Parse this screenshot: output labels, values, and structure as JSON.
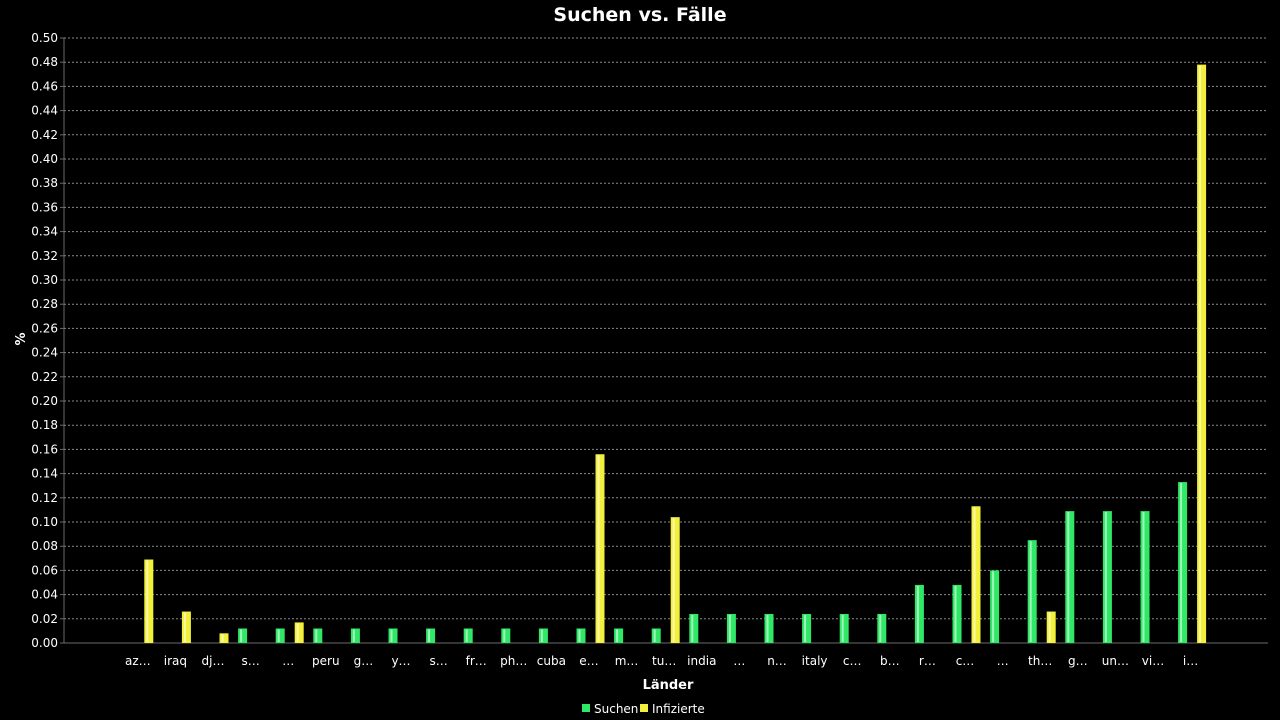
{
  "chart_data": {
    "type": "bar",
    "title": "Suchen vs. Fälle",
    "xlabel": "Länder",
    "ylabel": "%",
    "ylim": [
      0,
      0.5
    ],
    "ytick_step": 0.02,
    "grid": true,
    "legend_position": "bottom",
    "categories": [
      "az…",
      "iraq",
      "dj…",
      "s…",
      "…",
      "peru",
      "g…",
      "y…",
      "s…",
      "fr…",
      "ph…",
      "cuba",
      "e…",
      "m…",
      "tu…",
      "india",
      "…",
      "n…",
      "italy",
      "c…",
      "b…",
      "r…",
      "c…",
      "…",
      "th…",
      "g…",
      "un…",
      "vi…",
      "i…"
    ],
    "series": [
      {
        "name": "Suchen",
        "color": "#2ee866",
        "values": [
          0,
          0,
          0,
          0.012,
          0.012,
          0.012,
          0.012,
          0.012,
          0.012,
          0.012,
          0.012,
          0.012,
          0.012,
          0.012,
          0.012,
          0.024,
          0.024,
          0.024,
          0.024,
          0.024,
          0.024,
          0.048,
          0.048,
          0.06,
          0.085,
          0.109,
          0.109,
          0.109,
          0.133
        ]
      },
      {
        "name": "Infizierte",
        "color": "#f2f03a",
        "values": [
          0.069,
          0.026,
          0.008,
          0,
          0.017,
          0,
          0,
          0,
          0,
          0,
          0,
          0,
          0.156,
          0,
          0.104,
          0,
          0,
          0,
          0,
          0,
          0,
          0,
          0.113,
          0,
          0.026,
          0,
          0,
          0,
          0.478
        ]
      }
    ]
  }
}
